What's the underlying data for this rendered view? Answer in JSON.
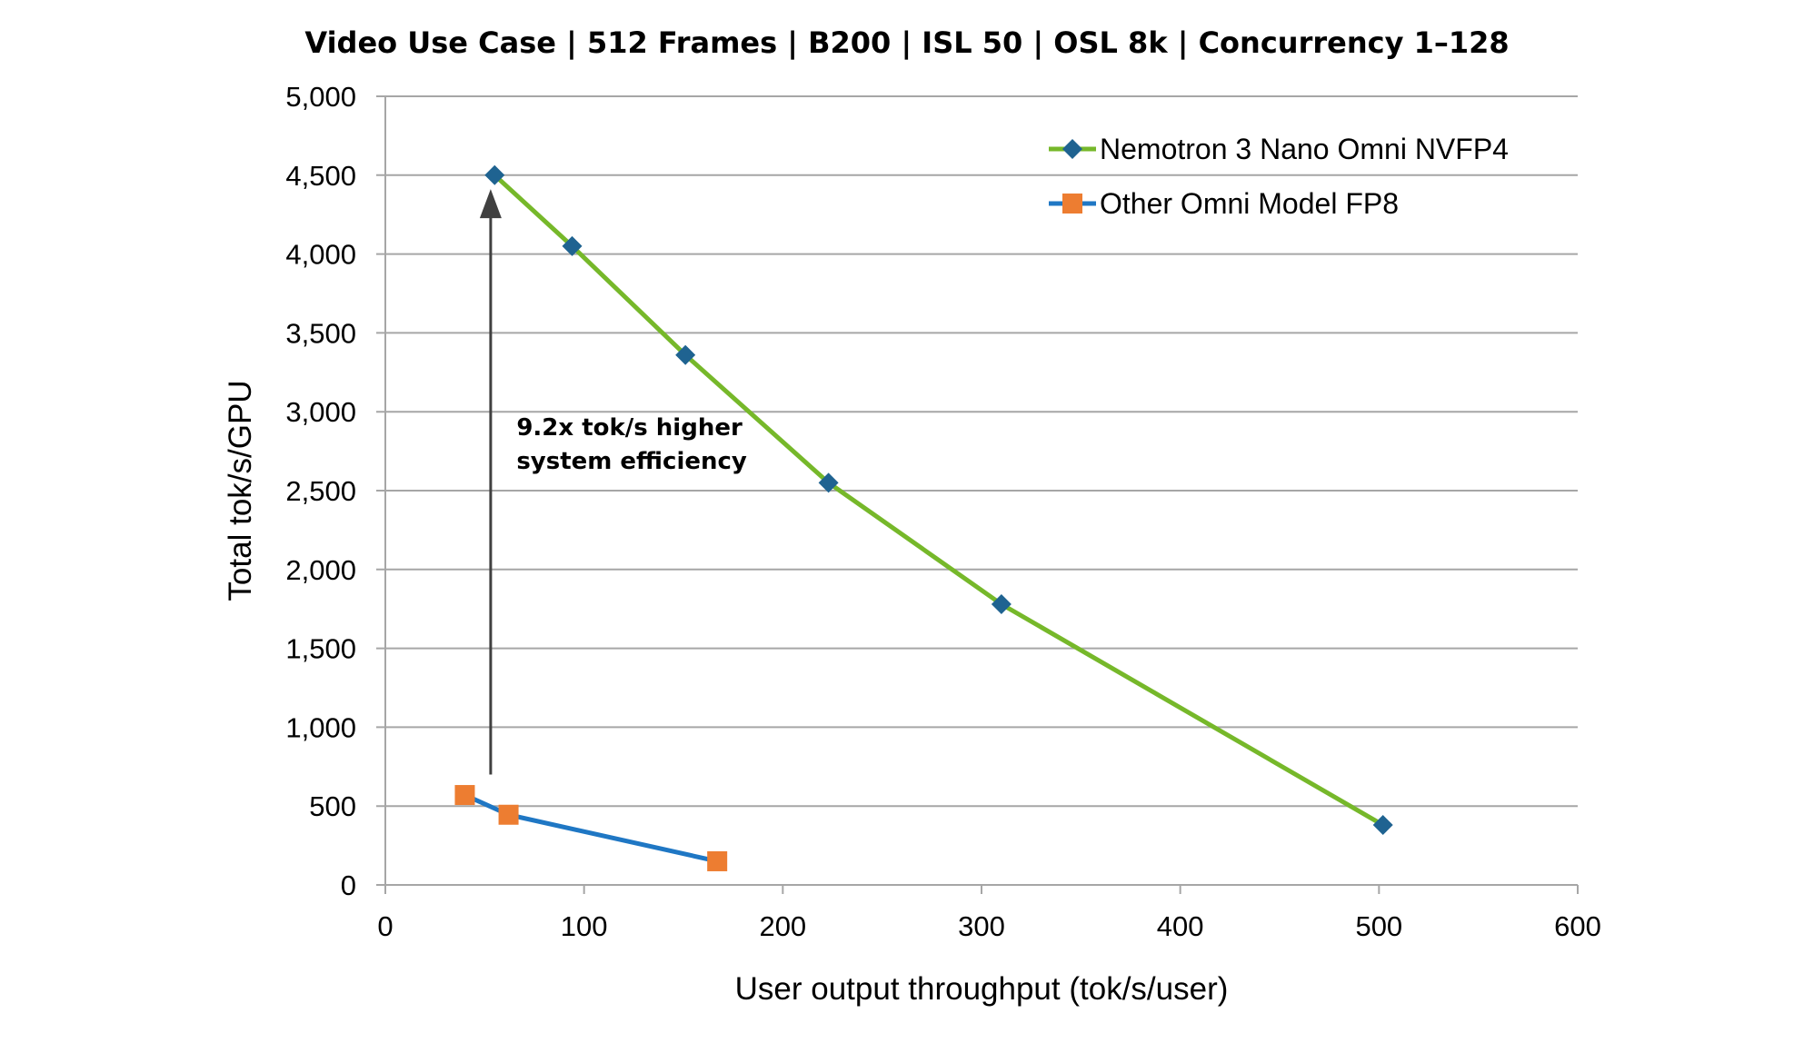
{
  "chart_data": {
    "type": "line",
    "title": "Video Use Case | 512 Frames  | B200 | ISL 50 | OSL 8k | Concurrency 1–128",
    "xlabel": "User output throughput (tok/s/user)",
    "ylabel": "Total tok/s/GPU",
    "xlim": [
      0,
      600
    ],
    "ylim": [
      0,
      5000
    ],
    "x_ticks": [
      0,
      100,
      200,
      300,
      400,
      500,
      600
    ],
    "y_ticks": [
      0,
      500,
      1000,
      1500,
      2000,
      2500,
      3000,
      3500,
      4000,
      4500,
      5000
    ],
    "x_tick_labels": [
      "0",
      "100",
      "200",
      "300",
      "400",
      "500",
      "600"
    ],
    "y_tick_labels": [
      "0",
      "500",
      "1,000",
      "1,500",
      "2,000",
      "2,500",
      "3,000",
      "3,500",
      "4,000",
      "4,500",
      "5,000"
    ],
    "grid": "horizontal",
    "legend_position": "top-right",
    "series": [
      {
        "name": "Nemotron 3 Nano Omni NVFP4",
        "line_color": "#76b82a",
        "marker": "diamond",
        "marker_color": "#1f6391",
        "x": [
          55,
          94,
          151,
          223,
          310,
          502
        ],
        "y": [
          4500,
          4050,
          3360,
          2550,
          1780,
          380
        ]
      },
      {
        "name": "Other Omni Model FP8",
        "line_color": "#1f77c4",
        "marker": "square",
        "marker_color": "#ed7d31",
        "x": [
          40,
          62,
          167
        ],
        "y": [
          570,
          445,
          150
        ]
      }
    ],
    "annotations": [
      {
        "type": "arrow",
        "x": 53,
        "y_from": 700,
        "y_to": 4400,
        "color": "#404040",
        "lines": [
          "9.2x tok/s higher",
          "system efficiency"
        ],
        "text_x": 66,
        "text_y": 2850
      }
    ]
  }
}
